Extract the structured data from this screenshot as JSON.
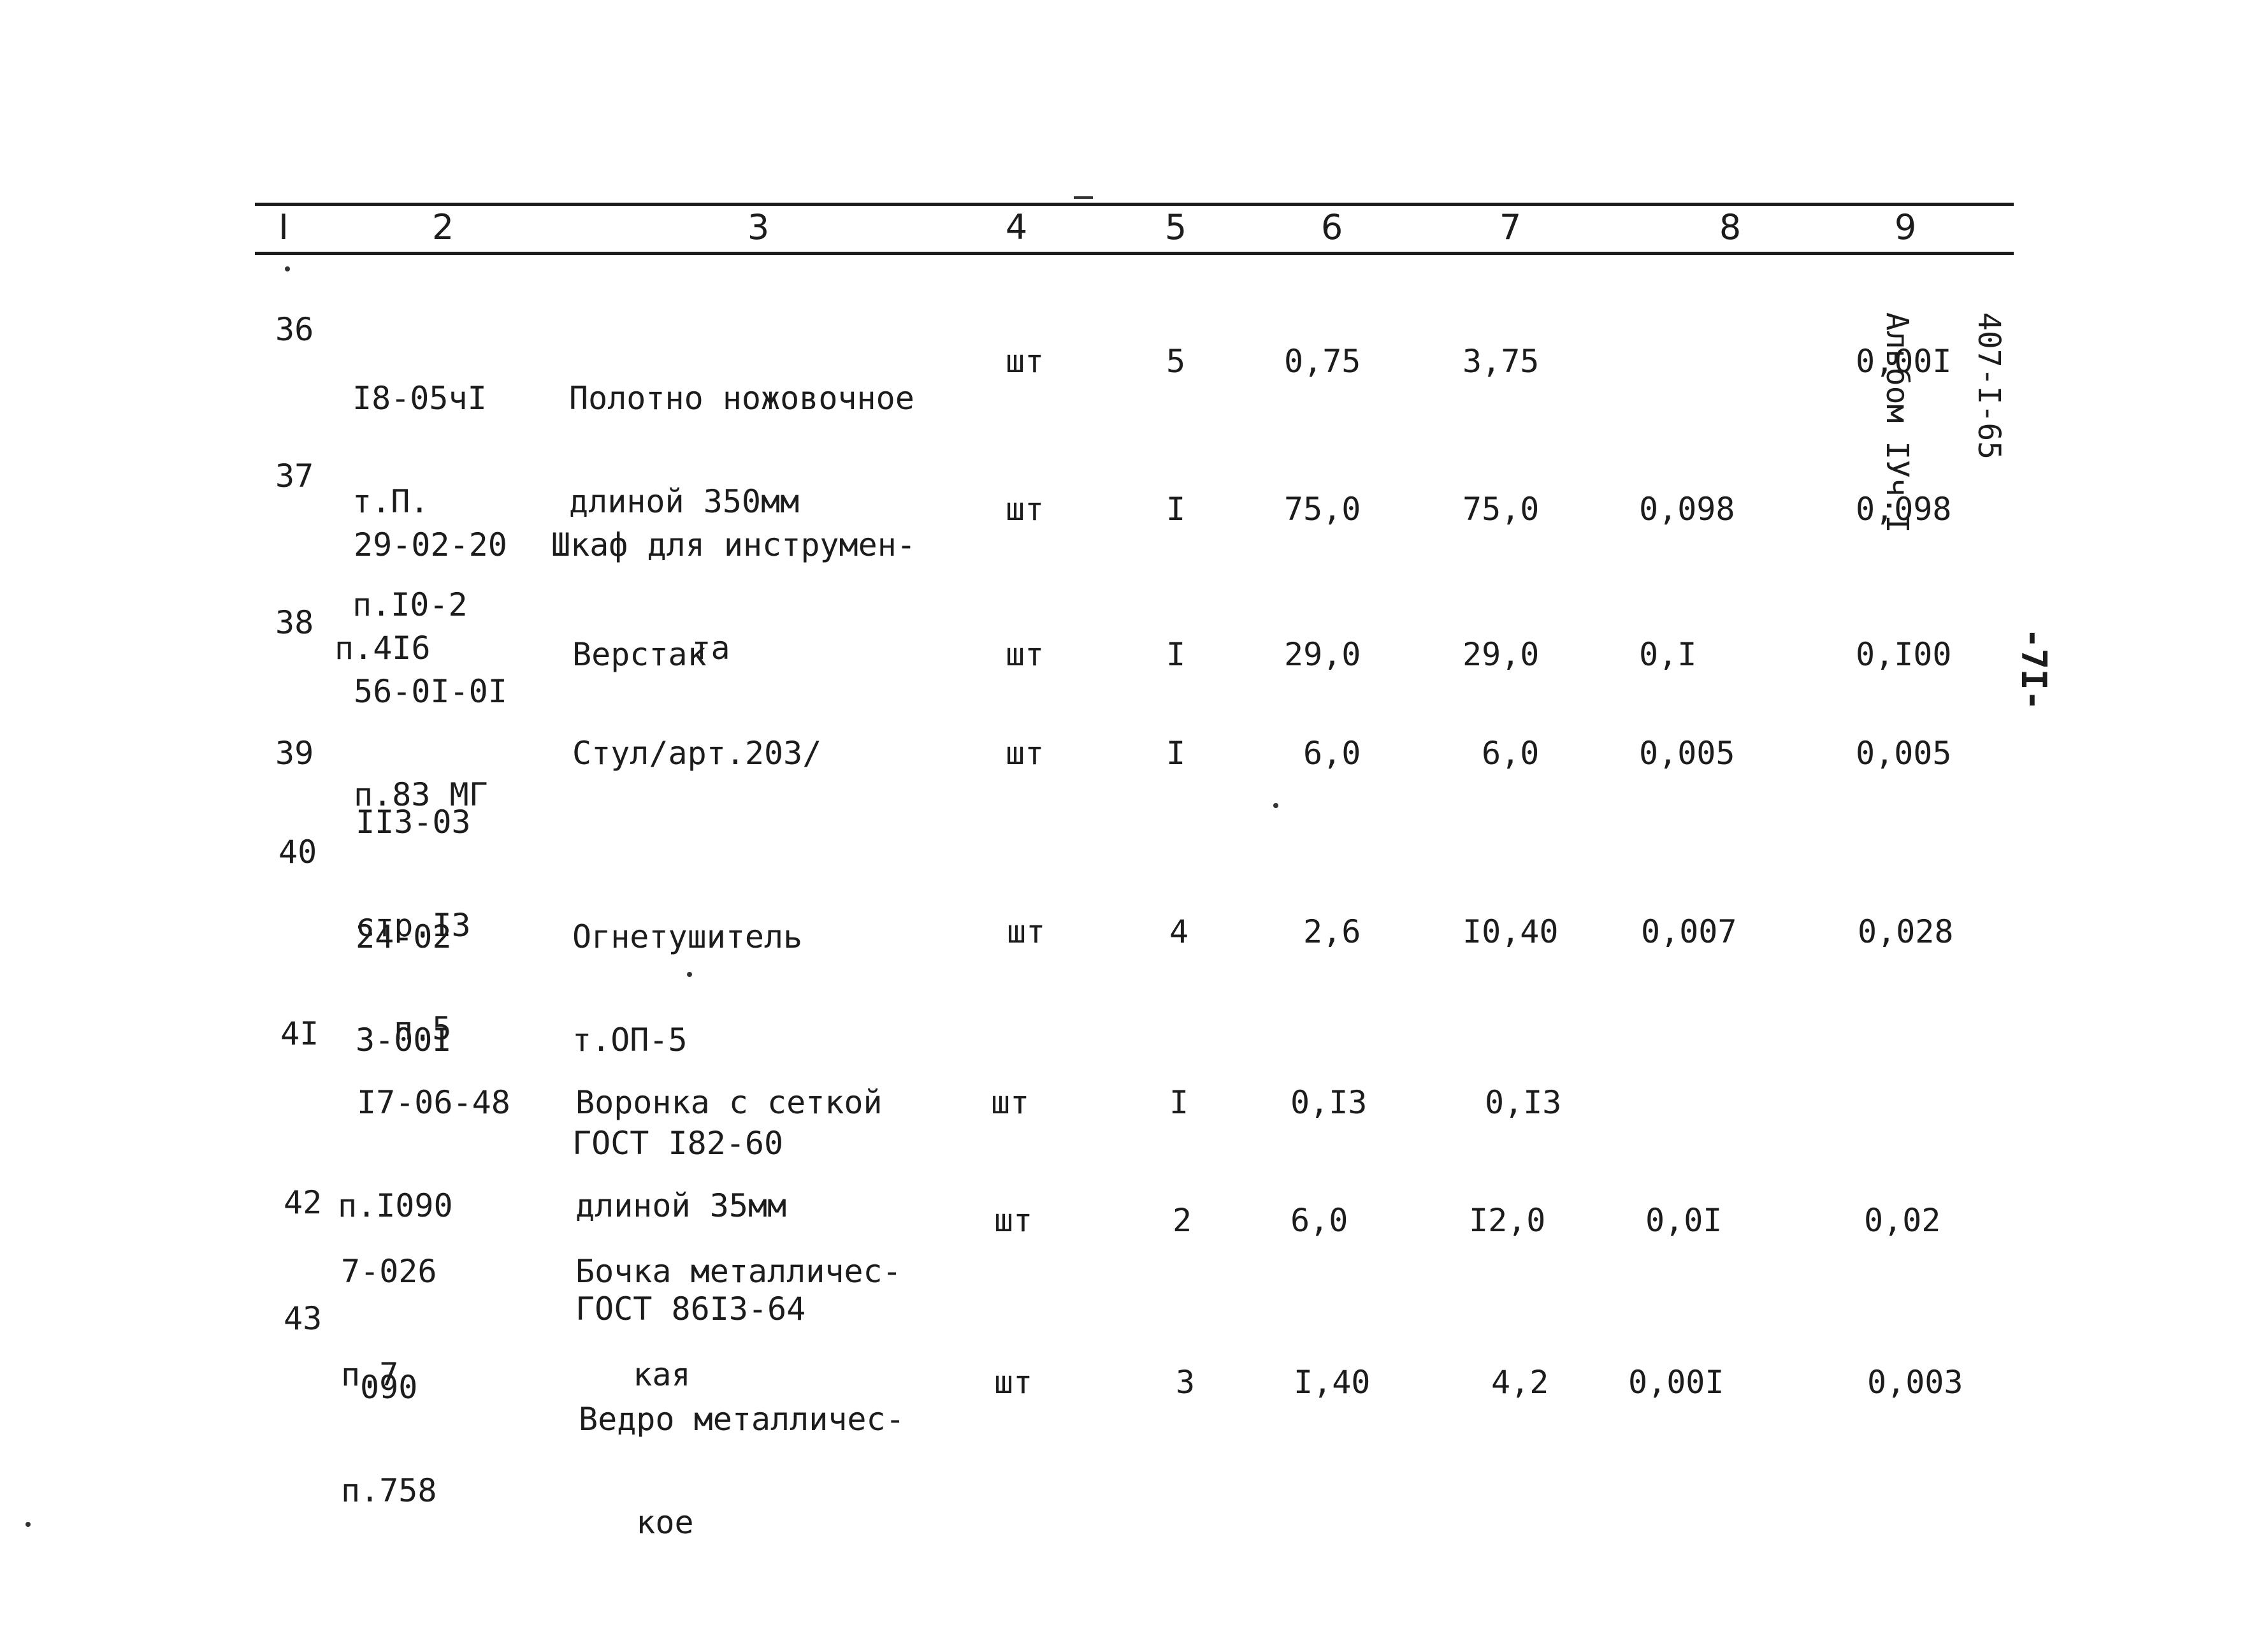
{
  "header": [
    "I",
    "2",
    "3",
    "4",
    "5",
    "6",
    "7",
    "8",
    "9"
  ],
  "side_label": [
    "407-I-65",
    "Альбом IУч.I"
  ],
  "page_number": "-7I-",
  "rows": [
    {
      "n": "36",
      "ref": [
        "I8-05чI",
        "т.П.",
        "п.I0-2"
      ],
      "name": [
        "Полотно ножовочное",
        "длиной 350мм"
      ],
      "unit": "шт",
      "qty": "5",
      "price": "0,75",
      "sum": "3,75",
      "c8": "",
      "c9": "0,00I"
    },
    {
      "n": "37",
      "ref": [
        "29-02-20",
        "п.4I6"
      ],
      "name": [
        "Шкаф для инструмен-",
        "    та"
      ],
      "unit": "шт",
      "qty": "I",
      "price": "75,0",
      "sum": "75,0",
      "c8": "0,098",
      "c9": "0,098"
    },
    {
      "n": "38",
      "ref": [
        "56-0I-0I",
        "п.83 МГ"
      ],
      "name": [
        "Верстак"
      ],
      "unit": "шт",
      "qty": "I",
      "price": "29,0",
      "sum": "29,0",
      "c8": "0,I",
      "c9": "0,I00"
    },
    {
      "n": "39",
      "ref": [
        "II3-03",
        "стр.I3",
        "п.5"
      ],
      "name": [
        "Стул/арт.203/"
      ],
      "unit": "шт",
      "qty": "I",
      "price": "6,0",
      "sum": "6,0",
      "c8": "0,005",
      "c9": "0,005"
    },
    {
      "n": "40",
      "ref": [
        "24-02",
        "3-00I"
      ],
      "name": [
        "Огнетушитель",
        "т.ОП-5",
        "ГОСТ I82-60"
      ],
      "unit": "шт",
      "qty": "4",
      "price": "2,6",
      "sum": "I0,40",
      "c8": "0,007",
      "c9": "0,028"
    },
    {
      "n": "4I",
      "ref": [
        "I7-06-48",
        "п.I090"
      ],
      "name": [
        "Воронка с сеткой",
        "длиной 35мм",
        "ГОСТ 86I3-64"
      ],
      "unit": "шт",
      "qty": "I",
      "price": "0,I3",
      "sum": "0,I3",
      "c8": "",
      "c9": ""
    },
    {
      "n": "42",
      "ref": [
        "7-026",
        "п.7"
      ],
      "name": [
        "Бочка металличес-",
        "   кая"
      ],
      "unit": "шт",
      "qty": "2",
      "price": "6,0",
      "sum": "I2,0",
      "c8": "0,0I",
      "c9": "0,02"
    },
    {
      "n": "43",
      "ref": [
        "090",
        "п.758"
      ],
      "name": [
        "Ведро металличес-",
        "   кое"
      ],
      "unit": "шт",
      "qty": "3",
      "price": "I,40",
      "sum": "4,2",
      "c8": "0,00I",
      "c9": "0,003"
    }
  ]
}
